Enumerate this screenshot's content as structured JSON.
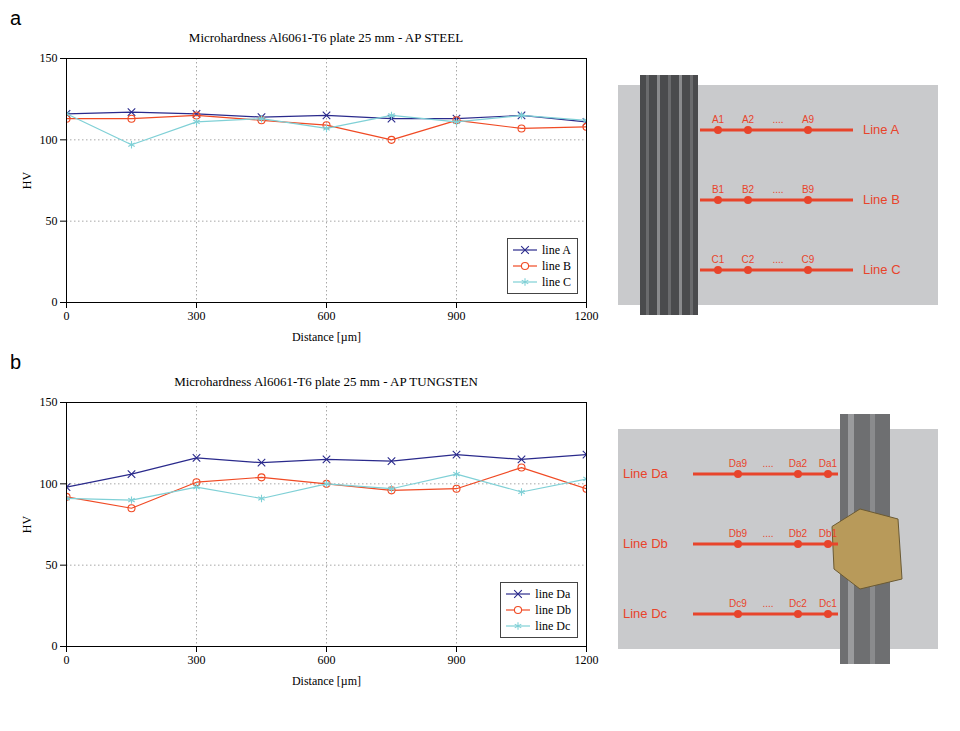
{
  "chart_data": [
    {
      "type": "line",
      "panel": "a",
      "title": "Microhardness Al6061-T6 plate 25 mm - AP STEEL",
      "xlabel": "Distance [µm]",
      "ylabel": "HV",
      "x": [
        0,
        150,
        300,
        450,
        600,
        750,
        900,
        1050,
        1200
      ],
      "xlim": [
        0,
        1200
      ],
      "xticks": [
        0,
        300,
        600,
        900,
        1200
      ],
      "ylim": [
        0,
        150
      ],
      "yticks": [
        0,
        50,
        100,
        150
      ],
      "grid": true,
      "legend": "bottom-right",
      "series": [
        {
          "name": "line A",
          "color": "#2a2a8c",
          "marker": "times",
          "values": [
            116,
            117,
            116,
            114,
            115,
            113,
            113,
            115,
            111
          ]
        },
        {
          "name": "line B",
          "color": "#f04a24",
          "marker": "circle",
          "values": [
            113,
            113,
            115,
            112,
            109,
            100,
            112,
            107,
            108
          ]
        },
        {
          "name": "line C",
          "color": "#7fd0d6",
          "marker": "asterisk",
          "values": [
            116,
            97,
            111,
            113,
            107,
            115,
            111,
            115,
            112
          ]
        }
      ],
      "annotations": [
        {
          "label": "Line A",
          "points": [
            "A1",
            "A2",
            "....",
            "A9"
          ]
        },
        {
          "label": "Line B",
          "points": [
            "B1",
            "B2",
            "....",
            "B9"
          ]
        },
        {
          "label": "Line C",
          "points": [
            "C1",
            "C2",
            "....",
            "C9"
          ]
        }
      ]
    },
    {
      "type": "line",
      "panel": "b",
      "title": "Microhardness Al6061-T6 plate 25 mm - AP TUNGSTEN",
      "xlabel": "Distance [µm]",
      "ylabel": "HV",
      "x": [
        0,
        150,
        300,
        450,
        600,
        750,
        900,
        1050,
        1200
      ],
      "xlim": [
        0,
        1200
      ],
      "xticks": [
        0,
        300,
        600,
        900,
        1200
      ],
      "ylim": [
        0,
        150
      ],
      "yticks": [
        0,
        50,
        100,
        150
      ],
      "grid": true,
      "legend": "bottom-right",
      "series": [
        {
          "name": "line Da",
          "color": "#2a2a8c",
          "marker": "times",
          "values": [
            98,
            106,
            116,
            113,
            115,
            114,
            118,
            115,
            118
          ]
        },
        {
          "name": "line Db",
          "color": "#f04a24",
          "marker": "circle",
          "values": [
            92,
            85,
            101,
            104,
            100,
            96,
            97,
            110,
            97
          ]
        },
        {
          "name": "line Dc",
          "color": "#7fd0d6",
          "marker": "asterisk",
          "values": [
            91,
            90,
            98,
            91,
            100,
            97,
            106,
            95,
            103
          ]
        }
      ],
      "annotations": [
        {
          "label": "Line Da",
          "points": [
            "Da9",
            "....",
            "Da2",
            "Da1"
          ]
        },
        {
          "label": "Line Db",
          "points": [
            "Db9",
            "....",
            "Db2",
            "Db1"
          ]
        },
        {
          "label": "Line Dc",
          "points": [
            "Dc9",
            "....",
            "Dc2",
            "Dc1"
          ]
        }
      ]
    }
  ]
}
